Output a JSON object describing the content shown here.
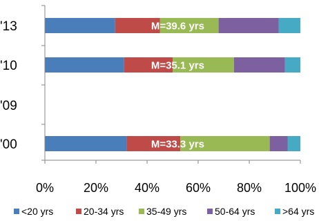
{
  "chart_data": {
    "type": "bar",
    "orientation": "horizontal",
    "stacked": true,
    "percent": true,
    "categories": [
      "'13",
      "'10",
      "'09",
      "'00"
    ],
    "series": [
      {
        "name": "<20 yrs",
        "color": "#4a7ebb",
        "values": [
          27.5,
          31,
          null,
          32
        ]
      },
      {
        "name": "20-34 yrs",
        "color": "#be4b48",
        "values": [
          17.5,
          19,
          null,
          21
        ]
      },
      {
        "name": "35-49 yrs",
        "color": "#98b954",
        "values": [
          23,
          24,
          null,
          35
        ]
      },
      {
        "name": "50-64 yrs",
        "color": "#7d60a0",
        "values": [
          23.5,
          20,
          null,
          7
        ]
      },
      {
        "name": ">64 yrs",
        "color": "#46aac5",
        "values": [
          8.5,
          6,
          null,
          5
        ]
      }
    ],
    "bar_labels": [
      "M=39.6 yrs",
      "M=35.1 yrs",
      "",
      "M=33.3 yrs"
    ],
    "xlim": [
      0,
      100
    ],
    "x_ticks": [
      "0%",
      "20%",
      "40%",
      "60%",
      "80%",
      "100%"
    ],
    "grid": false,
    "legend_position": "bottom"
  }
}
